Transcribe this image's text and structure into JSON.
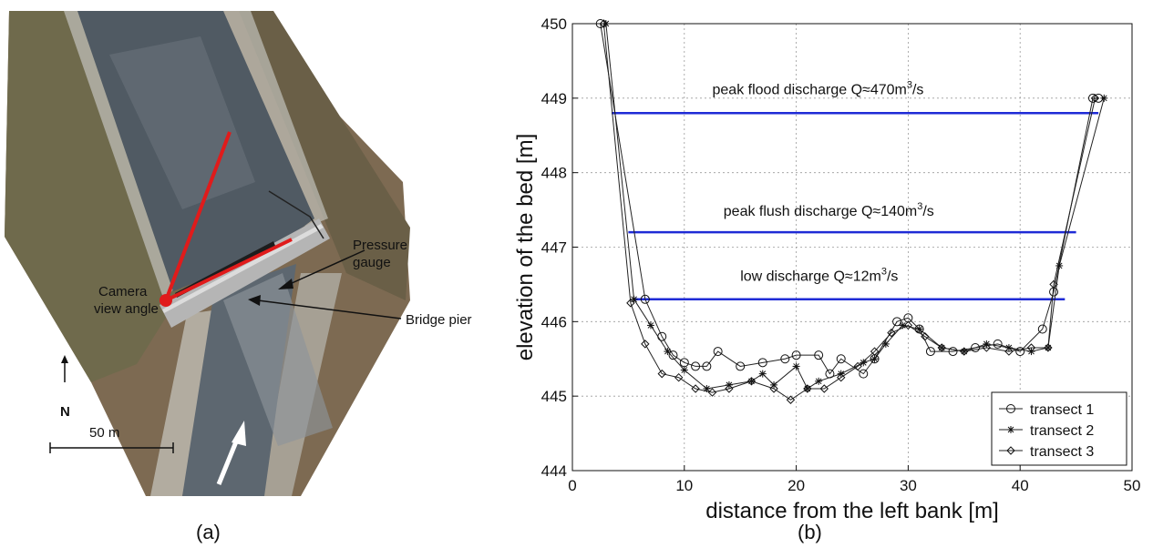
{
  "panel_a": {
    "labels": {
      "camera_line1": "Camera",
      "camera_line2": "view angle",
      "pressure_line1": "Pressure",
      "pressure_line2": "gauge",
      "bridge_pier": "Bridge pier",
      "north": "N",
      "scale": "50 m"
    },
    "caption": "(a)",
    "colors": {
      "view_angle": "#e01b1b",
      "camera": "#e01b1b",
      "flow_arrow": "#ffffff"
    },
    "icons": [
      "north-arrow-icon",
      "flow-direction-arrow-icon"
    ]
  },
  "panel_b": {
    "caption": "(b)"
  },
  "chart_data": {
    "type": "line",
    "xlabel": "distance from the left bank [m]",
    "ylabel": "elevation of the bed [m]",
    "xlim": [
      0,
      50
    ],
    "ylim": [
      444,
      450
    ],
    "xticks": [
      0,
      10,
      20,
      30,
      40,
      50
    ],
    "yticks": [
      444,
      445,
      446,
      447,
      448,
      449,
      450
    ],
    "grid": true,
    "legend_position": "bottom-right",
    "discharge_levels": [
      {
        "label_pre": "peak flood discharge Q≈470m",
        "label_sup": "3",
        "label_post": "/s",
        "elevation": 448.8,
        "x_start": 3.5,
        "x_end": 47,
        "label_x": 12.5,
        "label_y": 449.05,
        "color": "#1f2bd6"
      },
      {
        "label_pre": "peak flush discharge Q≈140m",
        "label_sup": "3",
        "label_post": "/s",
        "elevation": 447.2,
        "x_start": 5,
        "x_end": 45,
        "label_x": 13.5,
        "label_y": 447.42,
        "color": "#1f2bd6"
      },
      {
        "label_pre": "low discharge Q≈12m",
        "label_sup": "3",
        "label_post": "/s",
        "elevation": 446.3,
        "x_start": 5.5,
        "x_end": 44,
        "label_x": 15,
        "label_y": 446.55,
        "color": "#1f2bd6"
      }
    ],
    "series": [
      {
        "name": "transect 1",
        "marker": "circle",
        "x": [
          2.5,
          6.5,
          8,
          9,
          10,
          11,
          12,
          13,
          15,
          17,
          19,
          20,
          22,
          23,
          24,
          26,
          27,
          29,
          30,
          31,
          32,
          34,
          36,
          38,
          40,
          42,
          43,
          46.5,
          47
        ],
        "y": [
          450.0,
          446.3,
          445.8,
          445.55,
          445.45,
          445.4,
          445.4,
          445.6,
          445.4,
          445.45,
          445.5,
          445.55,
          445.55,
          445.3,
          445.5,
          445.3,
          445.5,
          446.0,
          446.05,
          445.9,
          445.6,
          445.6,
          445.65,
          445.7,
          445.6,
          445.9,
          446.4,
          449.0,
          449.0
        ]
      },
      {
        "name": "transect 2",
        "marker": "star",
        "x": [
          3,
          5.5,
          7,
          8.5,
          10,
          12,
          14,
          16,
          17,
          18,
          20,
          21,
          22,
          24,
          26,
          27,
          28,
          29.5,
          31,
          33,
          35,
          37,
          39,
          41,
          42.5,
          43.5,
          47.5
        ],
        "y": [
          450.0,
          446.3,
          445.95,
          445.6,
          445.35,
          445.1,
          445.15,
          445.2,
          445.3,
          445.15,
          445.4,
          445.1,
          445.2,
          445.3,
          445.45,
          445.5,
          445.7,
          445.95,
          445.9,
          445.65,
          445.6,
          445.7,
          445.65,
          445.6,
          445.65,
          446.75,
          449.0
        ]
      },
      {
        "name": "transect 3",
        "marker": "diamond",
        "x": [
          2.8,
          5.2,
          6.5,
          8,
          9.5,
          11,
          12.5,
          14,
          16,
          18,
          19.5,
          21,
          22.5,
          24,
          25.5,
          27,
          28.5,
          30,
          31.5,
          33,
          35,
          37,
          39,
          41,
          42.5,
          43,
          46.7
        ],
        "y": [
          450.0,
          446.25,
          445.7,
          445.3,
          445.25,
          445.1,
          445.05,
          445.1,
          445.2,
          445.1,
          444.95,
          445.1,
          445.1,
          445.25,
          445.4,
          445.6,
          445.85,
          445.95,
          445.8,
          445.65,
          445.6,
          445.65,
          445.6,
          445.65,
          445.65,
          446.5,
          449.0
        ]
      }
    ]
  }
}
